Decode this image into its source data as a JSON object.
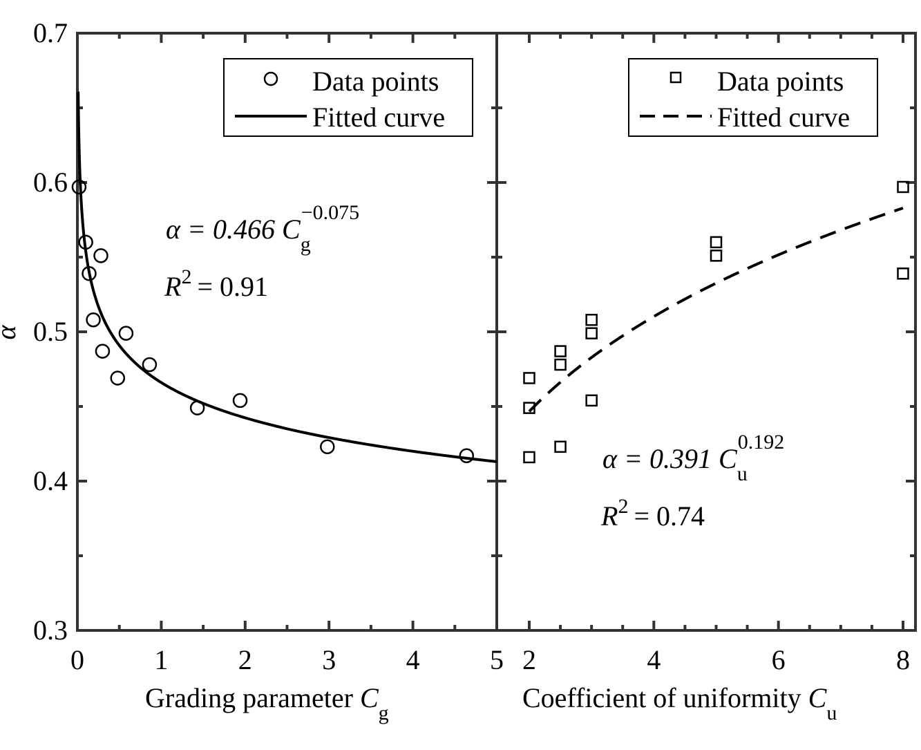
{
  "chart_data": [
    {
      "type": "scatter",
      "panel": "left",
      "xlabel": "Grading parameter",
      "xlabel_symbol": "C",
      "xlabel_subscript": "g",
      "ylabel": "α",
      "xlim": [
        0,
        5
      ],
      "ylim": [
        0.3,
        0.7
      ],
      "x_ticks": [
        "0",
        "1",
        "2",
        "3",
        "4",
        "5"
      ],
      "y_ticks": [
        "0.3",
        "0.4",
        "0.5",
        "0.6",
        "0.7"
      ],
      "legend": {
        "position": "top-right",
        "entries": [
          "Data points",
          "Fitted curve"
        ]
      },
      "series": [
        {
          "name": "Data points",
          "marker": "circle",
          "x": [
            0.02,
            0.1,
            0.14,
            0.19,
            0.28,
            0.3,
            0.48,
            0.58,
            0.86,
            1.43,
            1.94,
            2.98,
            4.64
          ],
          "y": [
            0.597,
            0.56,
            0.539,
            0.508,
            0.551,
            0.487,
            0.469,
            0.499,
            0.478,
            0.449,
            0.454,
            0.423,
            0.417
          ]
        },
        {
          "name": "Fitted curve",
          "line": "solid",
          "formula": "0.466*x^-0.075",
          "x_range": [
            0.002,
            5
          ]
        }
      ],
      "annotation": {
        "equation_lhs": "α = 0.466",
        "symbol": "C",
        "subscript": "g",
        "exponent": "−0.075",
        "r2_symbol": "R",
        "r2_exponent": "2",
        "r2_rhs": "= 0.91"
      }
    },
    {
      "type": "scatter",
      "panel": "right",
      "xlabel": "Coefficient of uniformity",
      "xlabel_symbol": "C",
      "xlabel_subscript": "u",
      "xlim": [
        2,
        8
      ],
      "ylim": [
        0.3,
        0.7
      ],
      "x_ticks": [
        "2",
        "4",
        "6",
        "8"
      ],
      "legend": {
        "position": "top-right",
        "entries": [
          "Data points",
          "Fitted curve"
        ]
      },
      "series": [
        {
          "name": "Data points",
          "marker": "square",
          "x": [
            2,
            2,
            2,
            2.5,
            2.5,
            2.5,
            3,
            3,
            3,
            5,
            5,
            8,
            8
          ],
          "y": [
            0.469,
            0.449,
            0.416,
            0.487,
            0.478,
            0.423,
            0.508,
            0.499,
            0.454,
            0.56,
            0.551,
            0.597,
            0.539
          ]
        },
        {
          "name": "Fitted curve",
          "line": "dashed",
          "formula": "0.391*x^0.192",
          "x_range": [
            2,
            8
          ]
        }
      ],
      "annotation": {
        "equation_lhs": "α = 0.391",
        "symbol": "C",
        "subscript": "u",
        "exponent": "0.192",
        "r2_symbol": "R",
        "r2_exponent": "2",
        "r2_rhs": "= 0.74"
      }
    }
  ]
}
